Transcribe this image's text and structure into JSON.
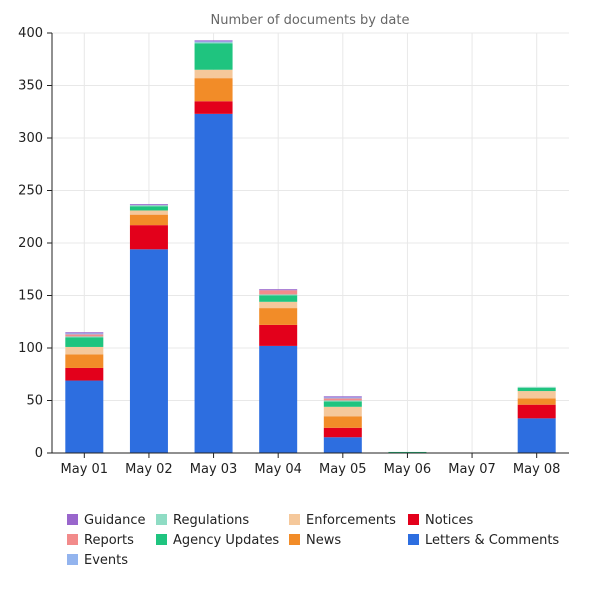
{
  "chart_data": {
    "type": "bar",
    "stacked": true,
    "title": "Number of documents by date",
    "xlabel": "",
    "ylabel": "",
    "categories": [
      "May 01",
      "May 02",
      "May 03",
      "May 04",
      "May 05",
      "May 06",
      "May 07",
      "May 08"
    ],
    "ylim": [
      0,
      400
    ],
    "yticks": [
      0,
      50,
      100,
      150,
      200,
      250,
      300,
      350,
      400
    ],
    "grid": true,
    "legend_position": "bottom",
    "series": [
      {
        "name": "Letters & Comments",
        "color": "#2d6ee0",
        "values": [
          69,
          194,
          323,
          102,
          15,
          0,
          0,
          33
        ]
      },
      {
        "name": "Notices",
        "color": "#e3001b",
        "values": [
          12,
          23,
          12,
          20,
          9,
          0,
          0,
          13
        ]
      },
      {
        "name": "News",
        "color": "#f28c28",
        "values": [
          13,
          10,
          22,
          16,
          11,
          0,
          0,
          6
        ]
      },
      {
        "name": "Enforcements",
        "color": "#f5c89b",
        "values": [
          7,
          4,
          8,
          6,
          9,
          0,
          0,
          7
        ]
      },
      {
        "name": "Agency Updates",
        "color": "#1fc47f",
        "values": [
          9,
          4,
          25,
          6,
          5,
          1,
          0,
          3
        ]
      },
      {
        "name": "Regulations",
        "color": "#8fdcc4",
        "values": [
          1,
          1,
          1,
          1,
          1,
          0,
          0,
          1
        ]
      },
      {
        "name": "Reports",
        "color": "#f28b8b",
        "values": [
          2,
          0,
          0,
          4,
          2,
          0,
          0,
          0
        ]
      },
      {
        "name": "Events",
        "color": "#93b4ee",
        "values": [
          1,
          0,
          1,
          0,
          1,
          0,
          0,
          0
        ]
      },
      {
        "name": "Guidance",
        "color": "#9966cc",
        "values": [
          1,
          1,
          1,
          1,
          1,
          0,
          0,
          0
        ]
      }
    ],
    "legend_order": [
      "Guidance",
      "Regulations",
      "Enforcements",
      "Notices",
      "Reports",
      "Agency Updates",
      "News",
      "Letters & Comments",
      "Events"
    ]
  }
}
